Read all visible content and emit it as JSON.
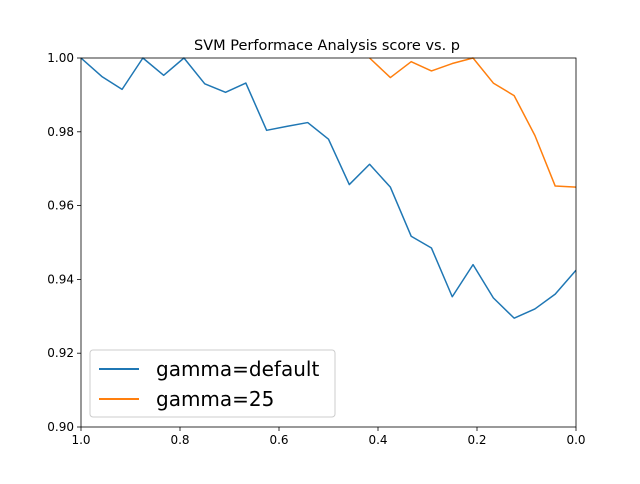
{
  "chart_data": {
    "type": "line",
    "title": "SVM Performace Analysis score vs. p",
    "xlabel": "",
    "ylabel": "",
    "xlim": [
      1.0,
      0.0
    ],
    "ylim": [
      0.9,
      1.0
    ],
    "x_ticks": [
      1.0,
      0.8,
      0.6,
      0.4,
      0.2,
      0.0
    ],
    "x_tick_labels": [
      "1.0",
      "0.8",
      "0.6",
      "0.4",
      "0.2",
      "0.0"
    ],
    "y_ticks": [
      0.9,
      0.92,
      0.94,
      0.96,
      0.98,
      1.0
    ],
    "y_tick_labels": [
      "0.90",
      "0.92",
      "0.94",
      "0.96",
      "0.98",
      "1.00"
    ],
    "grid": false,
    "legend_position": "lower-left",
    "series": [
      {
        "name": "gamma=default",
        "color": "#1f77b4",
        "x": [
          1.0,
          0.958,
          0.917,
          0.875,
          0.833,
          0.792,
          0.75,
          0.708,
          0.667,
          0.625,
          0.583,
          0.542,
          0.5,
          0.458,
          0.417,
          0.375,
          0.333,
          0.292,
          0.25,
          0.208,
          0.167,
          0.125,
          0.083,
          0.042,
          0.0
        ],
        "y": [
          1.0,
          0.995,
          0.9915,
          1.0,
          0.9953,
          1.0,
          0.993,
          0.9907,
          0.9932,
          0.9804,
          0.9815,
          0.9825,
          0.978,
          0.9657,
          0.9712,
          0.965,
          0.9517,
          0.9485,
          0.9353,
          0.944,
          0.935,
          0.9295,
          0.932,
          0.936,
          0.9425
        ]
      },
      {
        "name": "gamma=25",
        "color": "#ff7f0e",
        "x": [
          0.417,
          0.375,
          0.333,
          0.292,
          0.25,
          0.208,
          0.167,
          0.125,
          0.083,
          0.042,
          0.0
        ],
        "y": [
          1.0,
          0.9947,
          0.999,
          0.9965,
          0.9985,
          1.0,
          0.9932,
          0.9898,
          0.979,
          0.9653,
          0.965
        ]
      }
    ]
  }
}
